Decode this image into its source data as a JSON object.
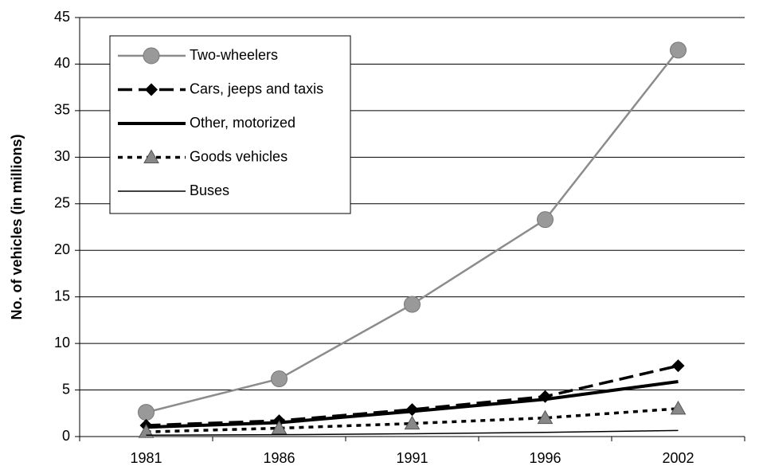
{
  "chart_data": {
    "type": "line",
    "y_label": "No. of vehicles (in millions)",
    "categories": [
      "1981",
      "1986",
      "1991",
      "1996",
      "2002"
    ],
    "ylim": [
      0,
      45
    ],
    "yticks": [
      0,
      5,
      10,
      15,
      20,
      25,
      30,
      35,
      40,
      45
    ],
    "grid": true,
    "legend": "top-left",
    "series": [
      {
        "name": "Two-wheelers",
        "color": "#8c8c8c",
        "marker": "circle",
        "dash": "solid",
        "values": [
          2.6,
          6.2,
          14.2,
          23.3,
          41.5
        ]
      },
      {
        "name": "Cars, jeeps and taxis",
        "color": "#000000",
        "marker": "diamond",
        "dash": "dashed",
        "values": [
          1.2,
          1.7,
          2.9,
          4.3,
          7.6
        ]
      },
      {
        "name": "Other, motorized",
        "color": "#000000",
        "marker": "none",
        "dash": "solid",
        "values": [
          1.0,
          1.5,
          2.7,
          4.0,
          5.9
        ]
      },
      {
        "name": "Goods vehicles",
        "color": "#000000",
        "marker": "triangle",
        "dash": "dotted",
        "values": [
          0.5,
          0.9,
          1.4,
          2.0,
          3.0
        ]
      },
      {
        "name": "Buses",
        "color": "#000000",
        "marker": "none",
        "dash": "solid",
        "values": [
          0.15,
          0.2,
          0.3,
          0.45,
          0.65
        ]
      }
    ]
  }
}
